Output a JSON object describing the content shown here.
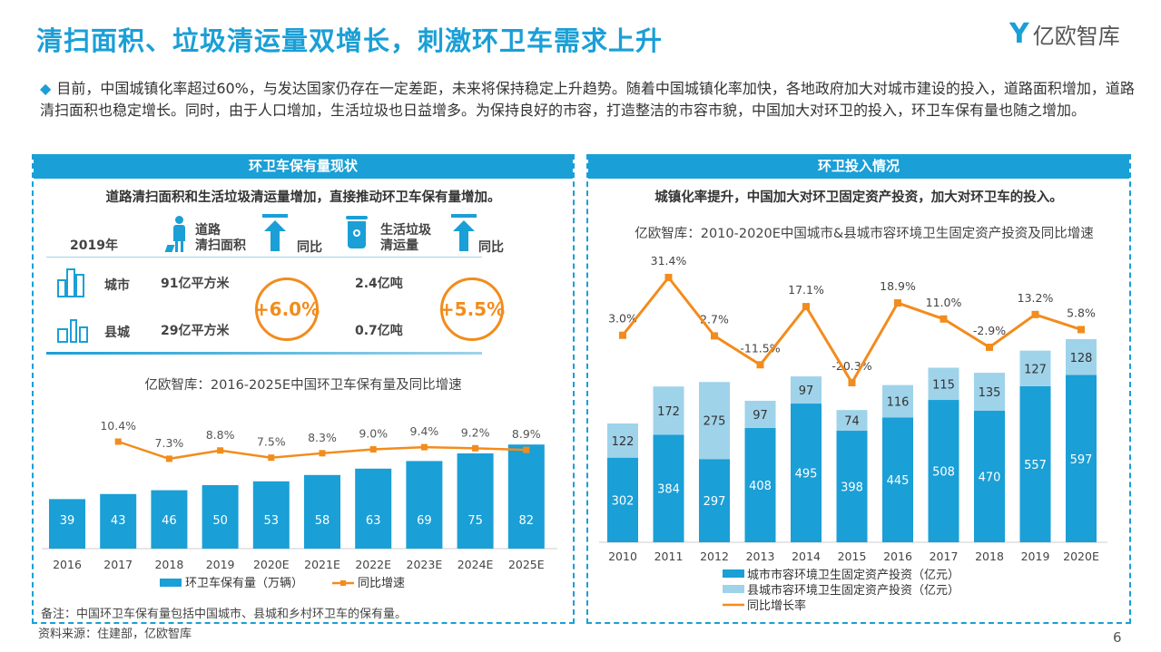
{
  "title": "清扫面积、垃圾清运量双增长，刺激环卫车需求上升",
  "logo": "亿欧智库",
  "intro": "目前，中国城镇化率超过60%，与发达国家仍存在一定差距，未来将保持稳定上升趋势。随着中国城镇化率加快，各地政府加大对城市建设的投入，道路面积增加，道路清扫面积也稳定增长。同时，由于人口增加，生活垃圾也日益增多。为保持良好的市容，打造整洁的市容市貌，中国加大对环卫的投入，环卫车保有量也随之增加。",
  "left": {
    "header": "环卫车保有量现状",
    "subtitle": "道路清扫面积和生活垃圾清运量增加，直接推动环卫车保有量增加。",
    "table": {
      "year": "2019年",
      "col1": "道路\n清扫面积",
      "yoy": "同比",
      "col2": "生活垃圾\n清运量",
      "rows": [
        {
          "name": "城市",
          "area": "91亿平方米",
          "garbage": "2.4亿吨"
        },
        {
          "name": "县城",
          "area": "29亿平方米",
          "garbage": "0.7亿吨"
        }
      ],
      "area_growth": "+6.0%",
      "garbage_growth": "+5.5%"
    },
    "note": "备注：中国环卫车保有量包括中国城市、县城和乡村环卫车的保有量。"
  },
  "right": {
    "header": "环卫投入情况",
    "subtitle": "城镇化率提升，中国加大对环卫固定资产投资，加大对环卫车的投入。"
  },
  "source": "资料来源：住建部，亿欧智库",
  "page": "6",
  "colors": {
    "brand": "#1a9fd6",
    "bar_dark": "#1a9fd6",
    "bar_light": "#9fd3ea",
    "line": "#f28c1c"
  },
  "chart_data": [
    {
      "type": "bar+line",
      "title": "亿欧智库：2016-2025E中国环卫车保有量及同比增速",
      "categories": [
        "2016",
        "2017",
        "2018",
        "2019",
        "2020E",
        "2021E",
        "2022E",
        "2023E",
        "2024E",
        "2025E"
      ],
      "series": [
        {
          "name": "环卫车保有量（万辆）",
          "type": "bar",
          "values": [
            39,
            43,
            46,
            50,
            53,
            58,
            63,
            69,
            75,
            82
          ]
        },
        {
          "name": "同比增速",
          "type": "line",
          "values": [
            null,
            10.4,
            7.3,
            8.8,
            7.5,
            8.3,
            9.0,
            9.4,
            9.2,
            8.9
          ],
          "labels": [
            "",
            "10.4%",
            "7.3%",
            "8.8%",
            "7.5%",
            "8.3%",
            "9.0%",
            "9.4%",
            "9.2%",
            "8.9%"
          ]
        }
      ],
      "legend": "bottom"
    },
    {
      "type": "stacked-bar+line",
      "title": "亿欧智库：2010-2020E中国城市&县城市容环境卫生固定资产投资及同比增速",
      "categories": [
        "2010",
        "2011",
        "2012",
        "2013",
        "2014",
        "2015",
        "2016",
        "2017",
        "2018",
        "2019",
        "2020E"
      ],
      "series": [
        {
          "name": "城市市容环境卫生固定资产投资（亿元）",
          "type": "bar",
          "values": [
            302,
            384,
            297,
            408,
            495,
            398,
            445,
            508,
            470,
            557,
            597
          ]
        },
        {
          "name": "县城市容环境卫生固定资产投资（亿元）",
          "type": "bar",
          "values": [
            122,
            172,
            275,
            97,
            97,
            74,
            116,
            115,
            135,
            127,
            128
          ]
        },
        {
          "name": "同比增长率",
          "type": "line",
          "values": [
            3.0,
            31.4,
            2.7,
            -11.5,
            17.1,
            -20.3,
            18.9,
            11.0,
            -2.9,
            13.2,
            5.8
          ],
          "labels": [
            "3.0%",
            "31.4%",
            "2.7%",
            "-11.5%",
            "17.1%",
            "-20.3%",
            "18.9%",
            "11.0%",
            "-2.9%",
            "13.2%",
            "5.8%"
          ]
        }
      ],
      "legend": "bottom"
    }
  ]
}
